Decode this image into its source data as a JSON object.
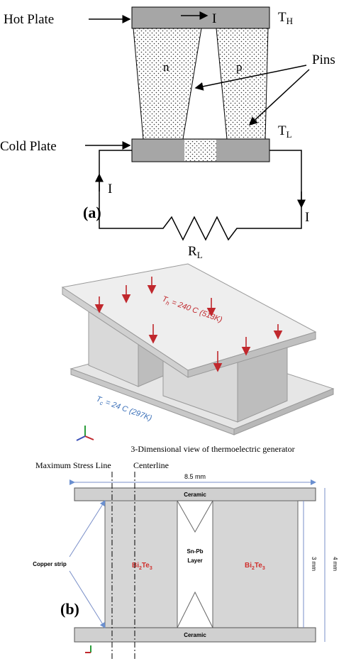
{
  "panel_a": {
    "label": "(a)",
    "hot_plate": "Hot Plate",
    "cold_plate": "Cold Plate",
    "current": [
      "I",
      "I",
      "I"
    ],
    "n_leg": "n",
    "p_leg": "p",
    "pins": "Pins",
    "t_hot": {
      "symbol": "T",
      "sub": "H"
    },
    "t_cold": {
      "symbol": "T",
      "sub": "L"
    },
    "load": {
      "symbol": "R",
      "sub": "L"
    }
  },
  "panel_3d": {
    "t_hot": {
      "symbol": "T",
      "sub": "h",
      "rest": " = 240 C (513K)"
    },
    "t_cold": {
      "symbol": "T",
      "sub": "c",
      "rest": " = 24 C (297K)"
    },
    "caption": "3-Dimensional view of thermoelectric generator"
  },
  "panel_b": {
    "label": "(b)",
    "max_stress_line": "Maximum Stress Line",
    "centerline": "Centerline",
    "width": "8.5 mm",
    "ceramic_top": "Ceramic",
    "ceramic_bottom": "Ceramic",
    "copper_strip": "Copper strip",
    "left_leg": [
      "Bi",
      "2",
      "Te",
      "3"
    ],
    "right_leg": [
      "Bi",
      "2",
      "Te",
      "3"
    ],
    "solder": [
      "Sn-Pb",
      "Layer"
    ],
    "inner_height": "3 mm",
    "outer_height": "4 mm"
  }
}
